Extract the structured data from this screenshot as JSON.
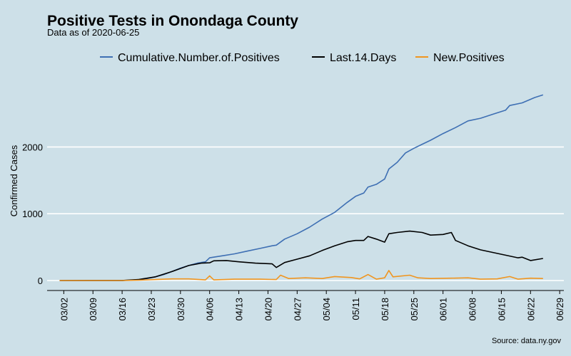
{
  "chart_data": {
    "type": "line",
    "title": "Positive Tests in Onondaga County",
    "subtitle": "Data as of 2020-06-25",
    "ylabel": "Confirmed Cases",
    "xlabel": "",
    "caption": "Source: data.ny.gov",
    "ylim": [
      0,
      2900
    ],
    "xlim": [
      "2020-02-27",
      "2020-06-30"
    ],
    "grid": "horizontal",
    "legend_position": "top",
    "x_ticks": [
      "03/02",
      "03/09",
      "03/16",
      "03/23",
      "03/30",
      "04/06",
      "04/13",
      "04/20",
      "04/27",
      "05/04",
      "05/11",
      "05/18",
      "05/25",
      "06/01",
      "06/08",
      "06/15",
      "06/22",
      "06/29"
    ],
    "x_tick_dates": [
      "2020-03-02",
      "2020-03-09",
      "2020-03-16",
      "2020-03-23",
      "2020-03-30",
      "2020-04-06",
      "2020-04-13",
      "2020-04-20",
      "2020-04-27",
      "2020-05-04",
      "2020-05-11",
      "2020-05-18",
      "2020-05-25",
      "2020-06-01",
      "2020-06-08",
      "2020-06-15",
      "2020-06-22",
      "2020-06-29"
    ],
    "y_ticks": [
      0,
      1000,
      2000
    ],
    "series": [
      {
        "name": "Cumulative.Number.of.Positives",
        "color": "#3e6fb3",
        "points": [
          [
            "2020-03-01",
            0
          ],
          [
            "2020-03-10",
            0
          ],
          [
            "2020-03-16",
            1
          ],
          [
            "2020-03-18",
            5
          ],
          [
            "2020-03-20",
            15
          ],
          [
            "2020-03-22",
            30
          ],
          [
            "2020-03-24",
            55
          ],
          [
            "2020-03-26",
            90
          ],
          [
            "2020-03-28",
            135
          ],
          [
            "2020-03-30",
            185
          ],
          [
            "2020-04-01",
            225
          ],
          [
            "2020-04-03",
            260
          ],
          [
            "2020-04-05",
            280
          ],
          [
            "2020-04-06",
            340
          ],
          [
            "2020-04-09",
            370
          ],
          [
            "2020-04-12",
            400
          ],
          [
            "2020-04-15",
            440
          ],
          [
            "2020-04-18",
            480
          ],
          [
            "2020-04-21",
            520
          ],
          [
            "2020-04-22",
            530
          ],
          [
            "2020-04-24",
            620
          ],
          [
            "2020-04-27",
            700
          ],
          [
            "2020-04-30",
            800
          ],
          [
            "2020-05-03",
            920
          ],
          [
            "2020-05-06",
            1020
          ],
          [
            "2020-05-09",
            1170
          ],
          [
            "2020-05-11",
            1260
          ],
          [
            "2020-05-13",
            1310
          ],
          [
            "2020-05-14",
            1400
          ],
          [
            "2020-05-16",
            1440
          ],
          [
            "2020-05-18",
            1520
          ],
          [
            "2020-05-19",
            1670
          ],
          [
            "2020-05-21",
            1770
          ],
          [
            "2020-05-23",
            1910
          ],
          [
            "2020-05-25",
            1980
          ],
          [
            "2020-05-27",
            2040
          ],
          [
            "2020-05-29",
            2100
          ],
          [
            "2020-06-01",
            2200
          ],
          [
            "2020-06-04",
            2290
          ],
          [
            "2020-06-07",
            2390
          ],
          [
            "2020-06-10",
            2430
          ],
          [
            "2020-06-13",
            2490
          ],
          [
            "2020-06-16",
            2550
          ],
          [
            "2020-06-17",
            2620
          ],
          [
            "2020-06-20",
            2660
          ],
          [
            "2020-06-23",
            2740
          ],
          [
            "2020-06-25",
            2780
          ]
        ]
      },
      {
        "name": "Last.14.Days",
        "color": "#000000",
        "points": [
          [
            "2020-03-01",
            0
          ],
          [
            "2020-03-16",
            1
          ],
          [
            "2020-03-20",
            15
          ],
          [
            "2020-03-24",
            55
          ],
          [
            "2020-03-28",
            135
          ],
          [
            "2020-04-01",
            225
          ],
          [
            "2020-04-04",
            260
          ],
          [
            "2020-04-06",
            265
          ],
          [
            "2020-04-07",
            295
          ],
          [
            "2020-04-10",
            300
          ],
          [
            "2020-04-13",
            280
          ],
          [
            "2020-04-17",
            260
          ],
          [
            "2020-04-21",
            250
          ],
          [
            "2020-04-22",
            195
          ],
          [
            "2020-04-24",
            270
          ],
          [
            "2020-04-27",
            320
          ],
          [
            "2020-04-30",
            370
          ],
          [
            "2020-05-03",
            450
          ],
          [
            "2020-05-06",
            520
          ],
          [
            "2020-05-09",
            580
          ],
          [
            "2020-05-11",
            600
          ],
          [
            "2020-05-13",
            600
          ],
          [
            "2020-05-14",
            660
          ],
          [
            "2020-05-16",
            620
          ],
          [
            "2020-05-18",
            575
          ],
          [
            "2020-05-19",
            700
          ],
          [
            "2020-05-21",
            720
          ],
          [
            "2020-05-24",
            740
          ],
          [
            "2020-05-27",
            720
          ],
          [
            "2020-05-29",
            680
          ],
          [
            "2020-06-01",
            690
          ],
          [
            "2020-06-03",
            720
          ],
          [
            "2020-06-04",
            600
          ],
          [
            "2020-06-07",
            520
          ],
          [
            "2020-06-10",
            460
          ],
          [
            "2020-06-13",
            420
          ],
          [
            "2020-06-16",
            380
          ],
          [
            "2020-06-19",
            340
          ],
          [
            "2020-06-20",
            350
          ],
          [
            "2020-06-22",
            300
          ],
          [
            "2020-06-25",
            330
          ]
        ]
      },
      {
        "name": "New.Positives",
        "color": "#f0951f",
        "points": [
          [
            "2020-03-01",
            0
          ],
          [
            "2020-03-16",
            0
          ],
          [
            "2020-03-20",
            5
          ],
          [
            "2020-03-24",
            15
          ],
          [
            "2020-03-28",
            25
          ],
          [
            "2020-04-01",
            25
          ],
          [
            "2020-04-05",
            10
          ],
          [
            "2020-04-06",
            70
          ],
          [
            "2020-04-07",
            10
          ],
          [
            "2020-04-12",
            20
          ],
          [
            "2020-04-18",
            20
          ],
          [
            "2020-04-22",
            15
          ],
          [
            "2020-04-23",
            80
          ],
          [
            "2020-04-25",
            30
          ],
          [
            "2020-04-29",
            40
          ],
          [
            "2020-05-03",
            30
          ],
          [
            "2020-05-06",
            60
          ],
          [
            "2020-05-10",
            45
          ],
          [
            "2020-05-12",
            25
          ],
          [
            "2020-05-14",
            90
          ],
          [
            "2020-05-16",
            20
          ],
          [
            "2020-05-18",
            40
          ],
          [
            "2020-05-19",
            150
          ],
          [
            "2020-05-20",
            55
          ],
          [
            "2020-05-24",
            80
          ],
          [
            "2020-05-26",
            40
          ],
          [
            "2020-05-29",
            30
          ],
          [
            "2020-06-03",
            35
          ],
          [
            "2020-06-07",
            40
          ],
          [
            "2020-06-10",
            20
          ],
          [
            "2020-06-14",
            25
          ],
          [
            "2020-06-17",
            60
          ],
          [
            "2020-06-19",
            20
          ],
          [
            "2020-06-22",
            35
          ],
          [
            "2020-06-25",
            30
          ]
        ]
      }
    ]
  }
}
